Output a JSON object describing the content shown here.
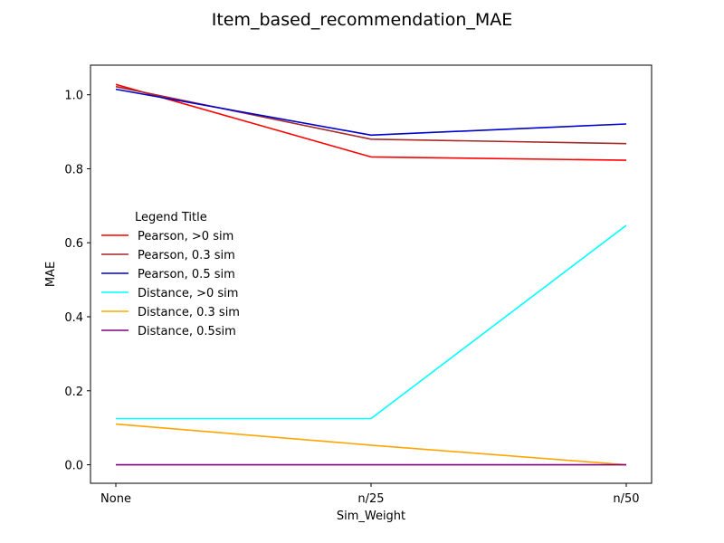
{
  "chart_data": {
    "type": "line",
    "title": "Item_based_recommendation_MAE",
    "xlabel": "Sim_Weight",
    "ylabel": "MAE",
    "categories": [
      "None",
      "n/25",
      "n/50"
    ],
    "ylim": [
      -0.05,
      1.08
    ],
    "yticks": [
      0.0,
      0.2,
      0.4,
      0.6,
      0.8,
      1.0
    ],
    "ytick_labels": [
      "0.0",
      "0.2",
      "0.4",
      "0.6",
      "0.8",
      "1.0"
    ],
    "grid": false,
    "legend": {
      "title": "Legend Title",
      "placement": "center-left"
    },
    "series": [
      {
        "name": "Pearson, >0 sim",
        "color": "#ff0000",
        "values": [
          1.028,
          0.832,
          0.823
        ]
      },
      {
        "name": "Pearson, 0.3 sim",
        "color": "#a52a2a",
        "values": [
          1.022,
          0.88,
          0.868
        ]
      },
      {
        "name": "Pearson, 0.5 sim",
        "color": "#0000cd",
        "values": [
          1.015,
          0.891,
          0.921
        ]
      },
      {
        "name": "Distance, >0 sim",
        "color": "#00ffff",
        "values": [
          0.125,
          0.125,
          0.647
        ]
      },
      {
        "name": "Distance, 0.3 sim",
        "color": "#ffa500",
        "values": [
          0.11,
          0.053,
          0.0
        ]
      },
      {
        "name": "Distance, 0.5sim",
        "color": "#800080",
        "values": [
          0.0,
          0.0,
          0.0
        ]
      }
    ]
  }
}
